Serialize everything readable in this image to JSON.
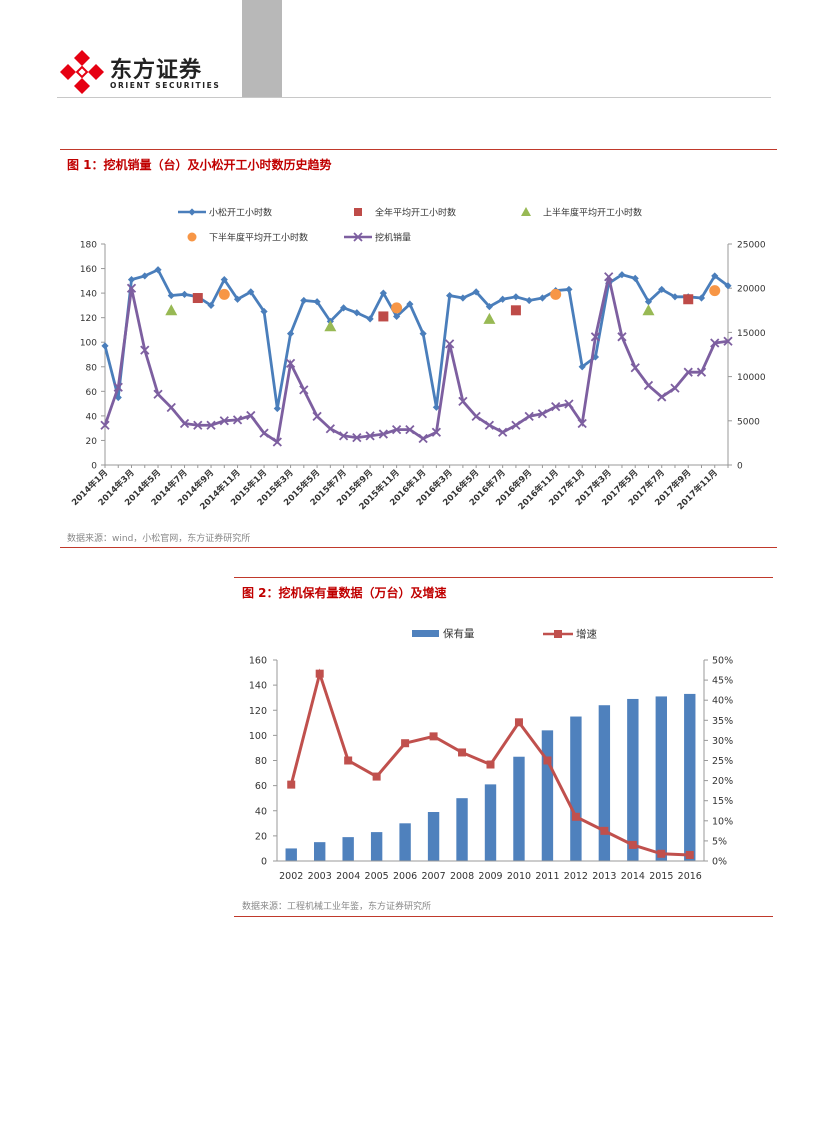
{
  "header": {
    "brand_cn": "东方证券",
    "brand_en": "ORIENT SECURITIES",
    "colors": {
      "logo_red": "#e60012",
      "grey_block": "#b8b8b8"
    }
  },
  "figure1": {
    "title": "图 1：挖机销量（台）及小松开工小时数历史趋势",
    "source": "数据来源：wind，小松官网，东方证券研究所"
  },
  "figure2": {
    "title": "图 2：挖机保有量数据（万台）及增速",
    "source": "数据来源：工程机械工业年鉴，东方证券研究所"
  },
  "chart_data": [
    {
      "type": "line",
      "title": "",
      "x_labels": [
        "2014年1月",
        "2014年3月",
        "2014年5月",
        "2014年7月",
        "2014年9月",
        "2014年11月",
        "2015年1月",
        "2015年3月",
        "2015年5月",
        "2015年7月",
        "2015年9月",
        "2015年11月",
        "2016年1月",
        "2016年3月",
        "2016年5月",
        "2016年7月",
        "2016年9月",
        "2016年11月",
        "2017年1月",
        "2017年3月",
        "2017年5月",
        "2017年7月",
        "2017年9月",
        "2017年11月"
      ],
      "x_months": [
        "2014-01",
        "2014-02",
        "2014-03",
        "2014-04",
        "2014-05",
        "2014-06",
        "2014-07",
        "2014-08",
        "2014-09",
        "2014-10",
        "2014-11",
        "2014-12",
        "2015-01",
        "2015-02",
        "2015-03",
        "2015-04",
        "2015-05",
        "2015-06",
        "2015-07",
        "2015-08",
        "2015-09",
        "2015-10",
        "2015-11",
        "2015-12",
        "2016-01",
        "2016-02",
        "2016-03",
        "2016-04",
        "2016-05",
        "2016-06",
        "2016-07",
        "2016-08",
        "2016-09",
        "2016-10",
        "2016-11",
        "2016-12",
        "2017-01",
        "2017-02",
        "2017-03",
        "2017-04",
        "2017-05",
        "2017-06",
        "2017-07",
        "2017-08",
        "2017-09",
        "2017-10",
        "2017-11",
        "2017-12"
      ],
      "y_left": {
        "min": 0,
        "max": 180,
        "ticks": [
          0,
          20,
          40,
          60,
          80,
          100,
          120,
          140,
          160,
          180
        ]
      },
      "y_right": {
        "min": 0,
        "max": 25000,
        "ticks": [
          0,
          5000,
          10000,
          15000,
          20000,
          25000
        ]
      },
      "legend_position": "top",
      "series": [
        {
          "name": "小松开工小时数",
          "axis": "left",
          "style": "line",
          "marker": "diamond",
          "color": "#4a7ebb",
          "values": [
            97,
            55,
            151,
            154,
            159,
            138,
            139,
            137,
            130,
            151,
            135,
            141,
            125,
            46,
            107,
            134,
            133,
            117,
            128,
            124,
            119,
            140,
            121,
            131,
            107,
            47,
            138,
            136,
            141,
            129,
            135,
            137,
            134,
            136,
            142,
            143,
            80,
            88,
            148,
            155,
            152,
            133,
            143,
            137,
            137,
            136,
            154,
            146
          ]
        },
        {
          "name": "全年平均开工小时数",
          "axis": "left",
          "style": "marker",
          "marker": "square",
          "color": "#be4b48",
          "points": [
            [
              "2014-08",
              136
            ],
            [
              "2015-10",
              121
            ],
            [
              "2016-08",
              126
            ],
            [
              "2017-09",
              135
            ]
          ]
        },
        {
          "name": "上半年度平均开工小时数",
          "axis": "left",
          "style": "marker",
          "marker": "triangle",
          "color": "#98b954",
          "points": [
            [
              "2014-06",
              126
            ],
            [
              "2015-06",
              113
            ],
            [
              "2016-06",
              119
            ],
            [
              "2017-06",
              126
            ]
          ]
        },
        {
          "name": "下半年度平均开工小时数",
          "axis": "left",
          "style": "marker",
          "marker": "circle",
          "color": "#f79646",
          "points": [
            [
              "2014-10",
              139
            ],
            [
              "2015-11",
              128
            ],
            [
              "2016-11",
              139
            ],
            [
              "2017-11",
              142
            ]
          ]
        },
        {
          "name": "挖机销量",
          "axis": "right",
          "style": "line",
          "marker": "x",
          "color": "#7d5fa0",
          "values": [
            4500,
            8800,
            20000,
            13000,
            8000,
            6500,
            4700,
            4500,
            4500,
            5000,
            5100,
            5600,
            3600,
            2600,
            11500,
            8500,
            5500,
            4100,
            3300,
            3100,
            3300,
            3500,
            4000,
            4000,
            3000,
            3700,
            13700,
            7200,
            5500,
            4500,
            3700,
            4500,
            5500,
            5800,
            6600,
            6900,
            4700,
            14500,
            21300,
            14500,
            11000,
            9000,
            7700,
            8700,
            10500,
            10500,
            13800,
            14000
          ]
        }
      ]
    },
    {
      "type": "bar",
      "title": "",
      "categories": [
        "2002",
        "2003",
        "2004",
        "2005",
        "2006",
        "2007",
        "2008",
        "2009",
        "2010",
        "2011",
        "2012",
        "2013",
        "2014",
        "2015",
        "2016"
      ],
      "y_left": {
        "min": 0,
        "max": 160,
        "ticks": [
          0,
          20,
          40,
          60,
          80,
          100,
          120,
          140,
          160
        ]
      },
      "y_right": {
        "min": 0,
        "max": 0.5,
        "ticks": [
          "0%",
          "5%",
          "10%",
          "15%",
          "20%",
          "25%",
          "30%",
          "35%",
          "40%",
          "45%",
          "50%"
        ]
      },
      "legend_position": "top",
      "series": [
        {
          "name": "保有量",
          "axis": "left",
          "style": "bar",
          "color": "#4f81bd",
          "values": [
            10,
            15,
            19,
            23,
            30,
            39,
            50,
            61,
            83,
            104,
            115,
            124,
            129,
            131,
            133
          ]
        },
        {
          "name": "增速",
          "axis": "right",
          "style": "line",
          "marker": "square",
          "color": "#c0504d",
          "values": [
            0.19,
            0.466,
            0.25,
            0.21,
            0.293,
            0.31,
            0.27,
            0.24,
            0.345,
            0.25,
            0.11,
            0.075,
            0.04,
            0.018,
            0.015
          ]
        }
      ]
    }
  ]
}
